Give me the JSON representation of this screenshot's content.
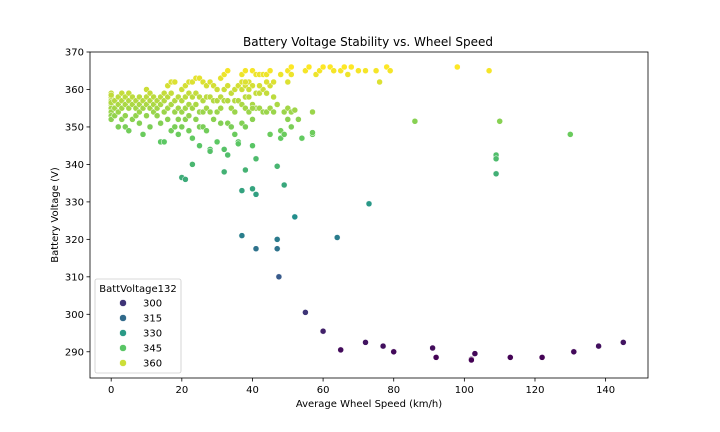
{
  "chart_data": {
    "type": "scatter",
    "title": "Battery Voltage Stability vs. Wheel Speed",
    "xlabel": "Average Wheel Speed (km/h)",
    "ylabel": "Battery Voltage (V)",
    "xlim": [
      -6,
      152
    ],
    "ylim": [
      283,
      370
    ],
    "xticks": [
      0,
      20,
      40,
      60,
      80,
      100,
      120,
      140
    ],
    "yticks": [
      290,
      300,
      310,
      320,
      330,
      340,
      350,
      360,
      370
    ],
    "grid": false,
    "legend": {
      "title": "BattVoltage132",
      "placement": "lower-left",
      "entries": [
        {
          "label": "300",
          "value": 300
        },
        {
          "label": "315",
          "value": 315
        },
        {
          "label": "330",
          "value": 330
        },
        {
          "label": "345",
          "value": 345
        },
        {
          "label": "360",
          "value": 360
        }
      ]
    },
    "colormap": "viridis",
    "color_range": [
      288,
      366
    ],
    "points": [
      [
        0,
        359
      ],
      [
        0,
        358
      ],
      [
        0,
        357
      ],
      [
        0,
        356
      ],
      [
        0,
        355
      ],
      [
        0,
        354
      ],
      [
        0,
        353
      ],
      [
        0,
        352
      ],
      [
        0,
        358.5
      ],
      [
        0,
        356.5
      ],
      [
        1,
        357
      ],
      [
        1,
        355
      ],
      [
        1,
        353
      ],
      [
        2,
        358
      ],
      [
        2,
        356
      ],
      [
        2,
        354
      ],
      [
        2,
        350
      ],
      [
        3,
        359
      ],
      [
        3,
        357
      ],
      [
        3,
        355
      ],
      [
        3,
        352
      ],
      [
        4,
        358
      ],
      [
        4,
        356
      ],
      [
        4,
        353
      ],
      [
        4,
        350
      ],
      [
        5,
        359
      ],
      [
        5,
        357
      ],
      [
        5,
        355
      ],
      [
        5,
        349
      ],
      [
        6,
        358
      ],
      [
        6,
        356
      ],
      [
        6,
        352
      ],
      [
        7,
        357
      ],
      [
        7,
        355
      ],
      [
        7,
        353
      ],
      [
        8,
        358
      ],
      [
        8,
        356
      ],
      [
        8,
        354
      ],
      [
        8,
        351
      ],
      [
        9,
        357
      ],
      [
        9,
        355
      ],
      [
        9,
        348
      ],
      [
        10,
        360
      ],
      [
        10,
        358
      ],
      [
        10,
        356
      ],
      [
        10,
        353
      ],
      [
        11,
        359
      ],
      [
        11,
        357
      ],
      [
        11,
        355
      ],
      [
        11,
        350
      ],
      [
        12,
        358
      ],
      [
        12,
        356
      ],
      [
        12,
        354
      ],
      [
        13,
        357
      ],
      [
        13,
        355
      ],
      [
        13,
        353
      ],
      [
        14,
        358
      ],
      [
        14,
        356
      ],
      [
        14,
        351
      ],
      [
        14,
        346
      ],
      [
        15,
        359
      ],
      [
        15,
        357
      ],
      [
        15,
        354
      ],
      [
        15,
        346
      ],
      [
        16,
        361
      ],
      [
        16,
        358
      ],
      [
        16,
        355
      ],
      [
        16,
        352
      ],
      [
        17,
        362
      ],
      [
        17,
        359
      ],
      [
        17,
        356
      ],
      [
        17,
        349
      ],
      [
        18,
        362
      ],
      [
        18,
        357
      ],
      [
        18,
        354
      ],
      [
        18,
        350
      ],
      [
        19,
        358
      ],
      [
        19,
        355
      ],
      [
        19,
        352
      ],
      [
        19,
        348
      ],
      [
        20,
        360
      ],
      [
        20,
        357
      ],
      [
        20,
        354
      ],
      [
        20,
        350
      ],
      [
        20,
        336.5
      ],
      [
        21,
        361
      ],
      [
        21,
        358
      ],
      [
        21,
        355
      ],
      [
        21,
        352
      ],
      [
        21,
        336
      ],
      [
        22,
        362
      ],
      [
        22,
        359
      ],
      [
        22,
        356
      ],
      [
        22,
        353
      ],
      [
        22,
        349
      ],
      [
        23,
        362
      ],
      [
        23,
        358
      ],
      [
        23,
        355
      ],
      [
        23,
        347
      ],
      [
        23,
        340
      ],
      [
        24,
        363
      ],
      [
        24,
        359
      ],
      [
        24,
        356
      ],
      [
        24,
        352
      ],
      [
        25,
        363
      ],
      [
        25,
        358
      ],
      [
        25,
        354
      ],
      [
        25,
        350
      ],
      [
        25,
        345
      ],
      [
        26,
        362
      ],
      [
        26,
        357
      ],
      [
        26,
        354
      ],
      [
        26,
        350
      ],
      [
        27,
        361
      ],
      [
        27,
        358
      ],
      [
        27,
        355
      ],
      [
        27,
        349
      ],
      [
        28,
        362
      ],
      [
        28,
        358
      ],
      [
        28,
        354
      ],
      [
        28,
        344
      ],
      [
        28,
        343.5
      ],
      [
        29,
        361
      ],
      [
        29,
        357
      ],
      [
        29,
        352
      ],
      [
        30,
        360
      ],
      [
        30,
        357
      ],
      [
        30,
        354
      ],
      [
        30,
        346
      ],
      [
        31,
        363
      ],
      [
        31,
        358
      ],
      [
        31,
        355
      ],
      [
        31,
        351
      ],
      [
        32,
        364
      ],
      [
        32,
        360
      ],
      [
        32,
        357
      ],
      [
        32,
        344
      ],
      [
        32,
        338
      ],
      [
        33,
        365
      ],
      [
        33,
        361
      ],
      [
        33,
        357
      ],
      [
        33,
        351
      ],
      [
        33,
        342.5
      ],
      [
        34,
        359
      ],
      [
        34,
        355
      ],
      [
        34,
        350
      ],
      [
        35,
        360
      ],
      [
        35,
        357
      ],
      [
        35,
        354
      ],
      [
        35,
        348
      ],
      [
        36,
        361
      ],
      [
        36,
        357
      ],
      [
        36,
        346
      ],
      [
        36,
        345.5
      ],
      [
        37,
        364
      ],
      [
        37,
        362
      ],
      [
        37,
        360
      ],
      [
        37,
        356
      ],
      [
        37,
        351
      ],
      [
        37,
        333
      ],
      [
        37,
        321
      ],
      [
        38,
        365
      ],
      [
        38,
        361
      ],
      [
        38,
        358
      ],
      [
        38,
        355
      ],
      [
        38,
        350
      ],
      [
        38,
        338.5
      ],
      [
        39,
        362
      ],
      [
        39,
        358
      ],
      [
        39,
        354
      ],
      [
        40,
        365
      ],
      [
        40,
        361
      ],
      [
        40,
        356
      ],
      [
        40,
        352
      ],
      [
        40,
        345
      ],
      [
        40,
        333.5
      ],
      [
        41,
        364
      ],
      [
        41,
        359
      ],
      [
        41,
        355
      ],
      [
        41,
        341.5
      ],
      [
        41,
        332
      ],
      [
        42,
        364
      ],
      [
        42,
        359
      ],
      [
        42,
        355
      ],
      [
        43,
        364
      ],
      [
        43,
        360
      ],
      [
        43,
        354
      ],
      [
        44,
        364
      ],
      [
        44,
        359
      ],
      [
        44,
        354
      ],
      [
        45,
        365
      ],
      [
        45,
        361
      ],
      [
        45,
        355
      ],
      [
        45,
        348
      ],
      [
        46,
        362
      ],
      [
        46,
        354
      ],
      [
        47,
        356
      ],
      [
        47,
        339.5
      ],
      [
        48,
        364
      ],
      [
        48,
        349
      ],
      [
        48,
        347
      ],
      [
        49,
        354
      ],
      [
        49,
        334.5
      ],
      [
        50,
        365
      ],
      [
        50,
        362
      ],
      [
        50,
        355
      ],
      [
        50,
        352
      ],
      [
        51,
        366
      ],
      [
        51,
        364
      ],
      [
        51,
        354
      ],
      [
        51,
        350
      ],
      [
        52,
        326
      ],
      [
        53,
        352
      ],
      [
        54,
        347
      ],
      [
        55,
        365
      ],
      [
        55,
        300.5
      ],
      [
        56,
        366
      ],
      [
        57,
        354
      ],
      [
        57,
        348
      ],
      [
        58,
        364
      ],
      [
        59,
        365
      ],
      [
        60,
        366
      ],
      [
        60,
        295.5
      ],
      [
        62,
        366
      ],
      [
        63,
        365
      ],
      [
        65,
        365
      ],
      [
        66,
        366
      ],
      [
        67,
        364
      ],
      [
        68,
        366
      ],
      [
        70,
        365
      ],
      [
        72,
        365
      ],
      [
        73,
        329.5
      ],
      [
        75,
        365
      ],
      [
        76,
        362
      ],
      [
        78,
        366
      ],
      [
        79,
        365
      ],
      [
        80,
        290
      ],
      [
        86,
        351.5
      ],
      [
        91,
        291
      ],
      [
        92,
        288.5
      ],
      [
        98,
        366
      ],
      [
        102,
        288
      ],
      [
        103,
        289.5
      ],
      [
        107,
        365
      ],
      [
        109,
        342.5
      ],
      [
        109,
        341.5
      ],
      [
        109,
        337.5
      ],
      [
        110,
        351.5
      ],
      [
        113,
        288.5
      ],
      [
        122,
        288.5
      ],
      [
        130,
        348
      ],
      [
        131,
        290
      ],
      [
        138,
        291.5
      ],
      [
        145,
        292.5
      ],
      [
        38,
        362
      ],
      [
        39,
        360
      ],
      [
        40,
        355
      ],
      [
        42,
        361
      ],
      [
        44,
        362
      ],
      [
        46,
        358
      ],
      [
        47,
        320
      ],
      [
        64,
        320.5
      ],
      [
        47.5,
        310
      ],
      [
        72,
        292.5
      ],
      [
        65,
        290.5
      ],
      [
        77,
        291.5
      ],
      [
        47,
        317.5
      ],
      [
        41,
        317.5
      ],
      [
        49,
        348
      ],
      [
        52,
        354.5
      ],
      [
        57,
        348.5
      ],
      [
        102,
        287.8
      ]
    ]
  }
}
